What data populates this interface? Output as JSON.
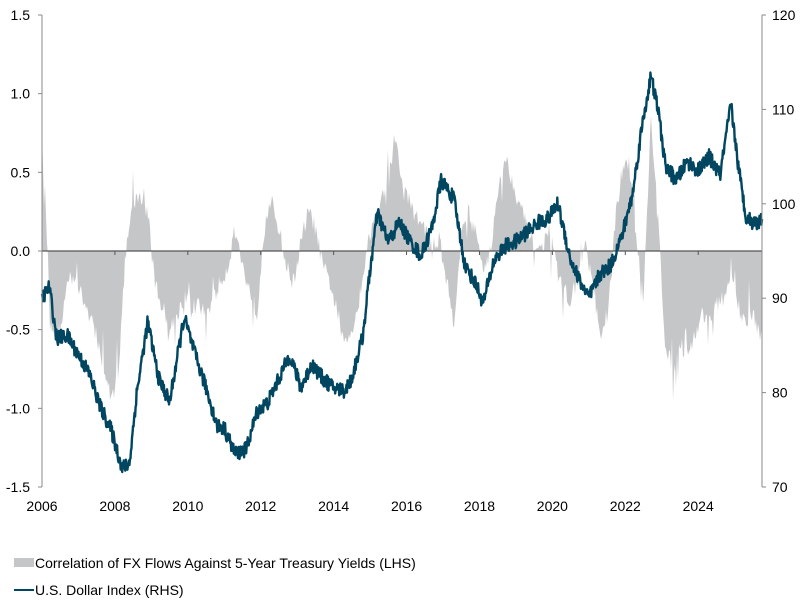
{
  "chart_data": {
    "type": "area+line",
    "title": "",
    "xlabel": "",
    "ylabel_left": "",
    "ylabel_right": "",
    "x_ticks": [
      "2006",
      "2008",
      "2010",
      "2012",
      "2014",
      "2016",
      "2018",
      "2020",
      "2022",
      "2024"
    ],
    "x_range": [
      2006.0,
      2025.75
    ],
    "y_left": {
      "range": [
        -1.5,
        1.5
      ],
      "ticks": [
        "-1.5",
        "-1.0",
        "-0.5",
        "0.0",
        "0.5",
        "1.0",
        "1.5"
      ],
      "tick_values": [
        -1.5,
        -1.0,
        -0.5,
        0.0,
        0.5,
        1.0,
        1.5
      ]
    },
    "y_right": {
      "range": [
        70,
        120
      ],
      "ticks": [
        "70",
        "80",
        "90",
        "100",
        "110",
        "120"
      ],
      "tick_values": [
        70,
        80,
        90,
        100,
        110,
        120
      ]
    },
    "grid": false,
    "legend_position": "bottom-left",
    "series": [
      {
        "name": "Correlation of FX Flows Against 5-Year Treasury Yields (LHS)",
        "axis": "left",
        "style": "area",
        "color": "#c5c6c8",
        "x": [
          2006.0,
          2006.1,
          2006.2,
          2006.3,
          2006.5,
          2006.7,
          2006.9,
          2007.1,
          2007.3,
          2007.5,
          2007.7,
          2007.9,
          2008.1,
          2008.3,
          2008.5,
          2008.7,
          2008.9,
          2009.1,
          2009.3,
          2009.5,
          2009.7,
          2009.9,
          2010.1,
          2010.3,
          2010.5,
          2010.7,
          2010.9,
          2011.1,
          2011.3,
          2011.5,
          2011.7,
          2011.9,
          2012.1,
          2012.3,
          2012.5,
          2012.7,
          2012.9,
          2013.1,
          2013.3,
          2013.5,
          2013.7,
          2013.9,
          2014.1,
          2014.3,
          2014.5,
          2014.7,
          2014.9,
          2015.1,
          2015.3,
          2015.5,
          2015.7,
          2015.9,
          2016.1,
          2016.3,
          2016.5,
          2016.7,
          2016.9,
          2017.1,
          2017.3,
          2017.5,
          2017.7,
          2017.9,
          2018.1,
          2018.3,
          2018.5,
          2018.7,
          2018.9,
          2019.1,
          2019.3,
          2019.5,
          2019.7,
          2019.9,
          2020.1,
          2020.3,
          2020.5,
          2020.7,
          2020.9,
          2021.1,
          2021.3,
          2021.5,
          2021.7,
          2021.9,
          2022.1,
          2022.3,
          2022.5,
          2022.7,
          2022.9,
          2023.1,
          2023.3,
          2023.5,
          2023.7,
          2023.9,
          2024.1,
          2024.3,
          2024.5,
          2024.7,
          2024.9,
          2025.1,
          2025.3,
          2025.5,
          2025.75
        ],
        "values": [
          0.7,
          0.3,
          -0.3,
          -0.55,
          -0.5,
          -0.2,
          -0.15,
          -0.3,
          -0.4,
          -0.55,
          -0.75,
          -0.95,
          -0.75,
          0.0,
          0.3,
          0.35,
          0.25,
          -0.2,
          -0.35,
          -0.5,
          -0.4,
          -0.3,
          -0.35,
          -0.35,
          -0.4,
          -0.3,
          -0.2,
          -0.1,
          0.15,
          -0.1,
          -0.25,
          -0.4,
          0.2,
          0.3,
          0.15,
          -0.1,
          -0.2,
          0.05,
          0.25,
          0.15,
          -0.1,
          -0.2,
          -0.4,
          -0.6,
          -0.5,
          -0.3,
          0.0,
          0.2,
          0.3,
          0.5,
          0.7,
          0.4,
          0.3,
          0.2,
          0.15,
          0.0,
          0.1,
          -0.2,
          -0.45,
          0.1,
          0.25,
          0.1,
          -0.1,
          0.0,
          0.35,
          0.6,
          0.45,
          0.3,
          0.15,
          0.05,
          0.0,
          0.15,
          -0.1,
          -0.25,
          -0.3,
          -0.2,
          0.05,
          -0.2,
          -0.55,
          -0.5,
          0.15,
          0.5,
          0.55,
          0.1,
          -0.3,
          0.85,
          0.2,
          -0.6,
          -0.75,
          -0.6,
          -0.65,
          -0.55,
          -0.4,
          -0.45,
          -0.35,
          -0.3,
          -0.15,
          -0.35,
          -0.45,
          -0.4,
          -0.55
        ]
      },
      {
        "name": "U.S. Dollar Index (RHS)",
        "axis": "right",
        "style": "line",
        "color": "#004660",
        "x": [
          2006.0,
          2006.2,
          2006.4,
          2006.7,
          2007.0,
          2007.3,
          2007.6,
          2007.9,
          2008.2,
          2008.4,
          2008.6,
          2008.9,
          2009.2,
          2009.5,
          2009.9,
          2010.2,
          2010.5,
          2010.8,
          2011.0,
          2011.3,
          2011.6,
          2011.9,
          2012.2,
          2012.5,
          2012.8,
          2013.1,
          2013.4,
          2013.7,
          2014.0,
          2014.3,
          2014.5,
          2014.8,
          2015.0,
          2015.2,
          2015.5,
          2015.8,
          2016.1,
          2016.4,
          2016.7,
          2016.95,
          2017.3,
          2017.6,
          2017.9,
          2018.1,
          2018.4,
          2018.7,
          2019.0,
          2019.3,
          2019.6,
          2019.9,
          2020.15,
          2020.3,
          2020.5,
          2020.8,
          2021.0,
          2021.3,
          2021.6,
          2021.9,
          2022.2,
          2022.45,
          2022.7,
          2022.9,
          2023.1,
          2023.4,
          2023.7,
          2024.0,
          2024.3,
          2024.6,
          2024.9,
          2025.1,
          2025.3,
          2025.5,
          2025.75
        ],
        "values": [
          90.0,
          91.2,
          85.8,
          86.0,
          84.0,
          82.0,
          78.5,
          76.0,
          72.0,
          72.5,
          80.0,
          87.5,
          81.5,
          79.0,
          88.0,
          84.0,
          80.5,
          76.5,
          76.2,
          73.5,
          74.0,
          78.0,
          79.0,
          81.5,
          84.0,
          80.5,
          83.0,
          81.5,
          80.5,
          80.2,
          81.5,
          86.0,
          93.0,
          99.0,
          96.0,
          98.0,
          96.0,
          94.5,
          97.5,
          102.5,
          100.5,
          93.5,
          91.5,
          89.5,
          94.0,
          95.5,
          96.0,
          97.0,
          98.0,
          98.5,
          100.0,
          97.5,
          94.0,
          91.5,
          90.0,
          92.5,
          93.5,
          96.5,
          101.0,
          108.0,
          113.5,
          110.0,
          104.0,
          102.5,
          104.5,
          103.5,
          105.0,
          103.0,
          110.5,
          104.0,
          98.8,
          98.0,
          98.2
        ]
      }
    ]
  },
  "legend": {
    "items": [
      {
        "label": "Correlation of FX Flows Against 5-Year Treasury Yields (LHS)"
      },
      {
        "label": "U.S. Dollar Index (RHS)"
      }
    ]
  }
}
